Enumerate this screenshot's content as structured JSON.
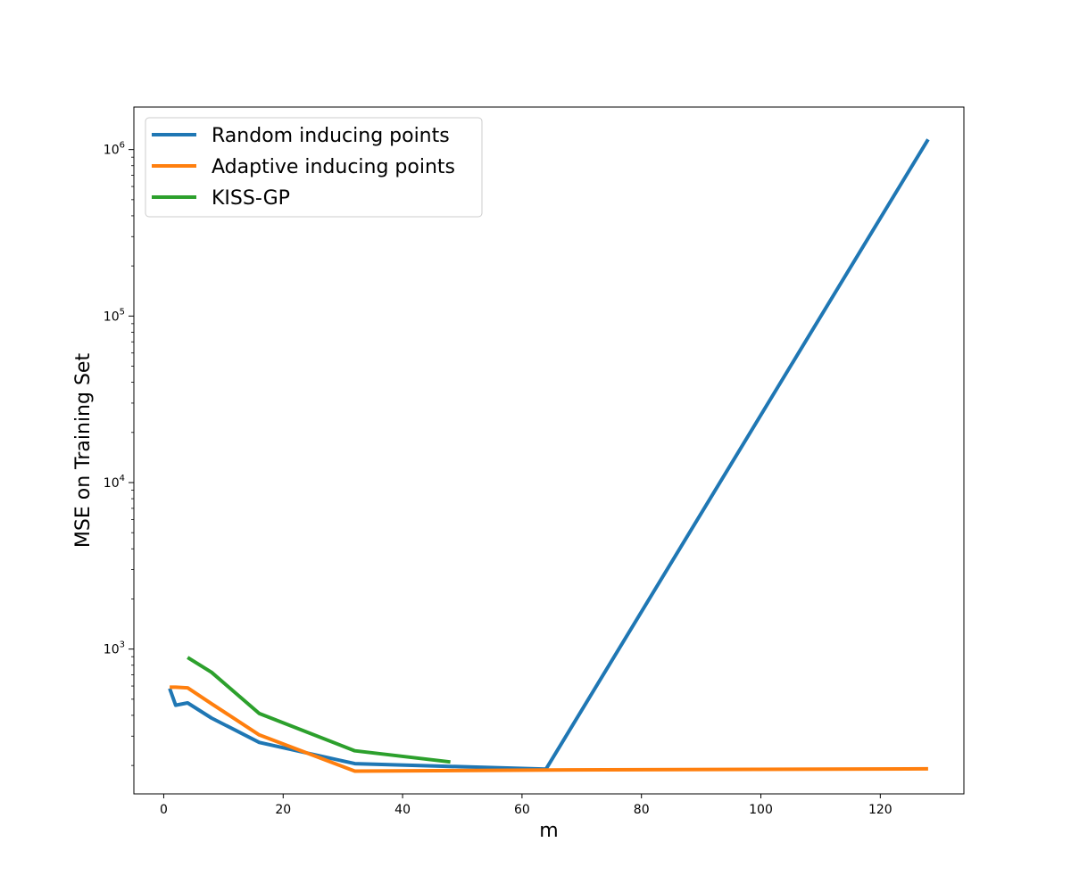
{
  "chart_data": {
    "type": "line",
    "title": "",
    "xlabel": "m",
    "ylabel": "MSE on Training Set",
    "y_scale": "log",
    "xlim": [
      -5,
      134
    ],
    "ylim": [
      135,
      1800000
    ],
    "x_ticks": [
      0,
      20,
      40,
      60,
      80,
      100,
      120
    ],
    "y_ticks": [
      {
        "value": 1000,
        "base": "10",
        "exp": "3"
      },
      {
        "value": 10000,
        "base": "10",
        "exp": "4"
      },
      {
        "value": 100000,
        "base": "10",
        "exp": "5"
      },
      {
        "value": 1000000,
        "base": "10",
        "exp": "6"
      }
    ],
    "grid": false,
    "legend_position": "top-left",
    "series": [
      {
        "name": "Random inducing points",
        "color": "#1f77b4",
        "x": [
          1,
          2,
          4,
          8,
          16,
          32,
          64,
          128
        ],
        "y": [
          580,
          460,
          475,
          385,
          275,
          205,
          190,
          1150000
        ]
      },
      {
        "name": "Adaptive inducing points",
        "color": "#ff7f0e",
        "x": [
          1,
          2,
          4,
          8,
          16,
          32,
          64,
          128
        ],
        "y": [
          590,
          590,
          585,
          470,
          305,
          185,
          188,
          191
        ]
      },
      {
        "name": "KISS-GP",
        "color": "#2ca02c",
        "x": [
          4,
          8,
          16,
          32,
          48
        ],
        "y": [
          890,
          725,
          410,
          245,
          210
        ]
      }
    ]
  }
}
